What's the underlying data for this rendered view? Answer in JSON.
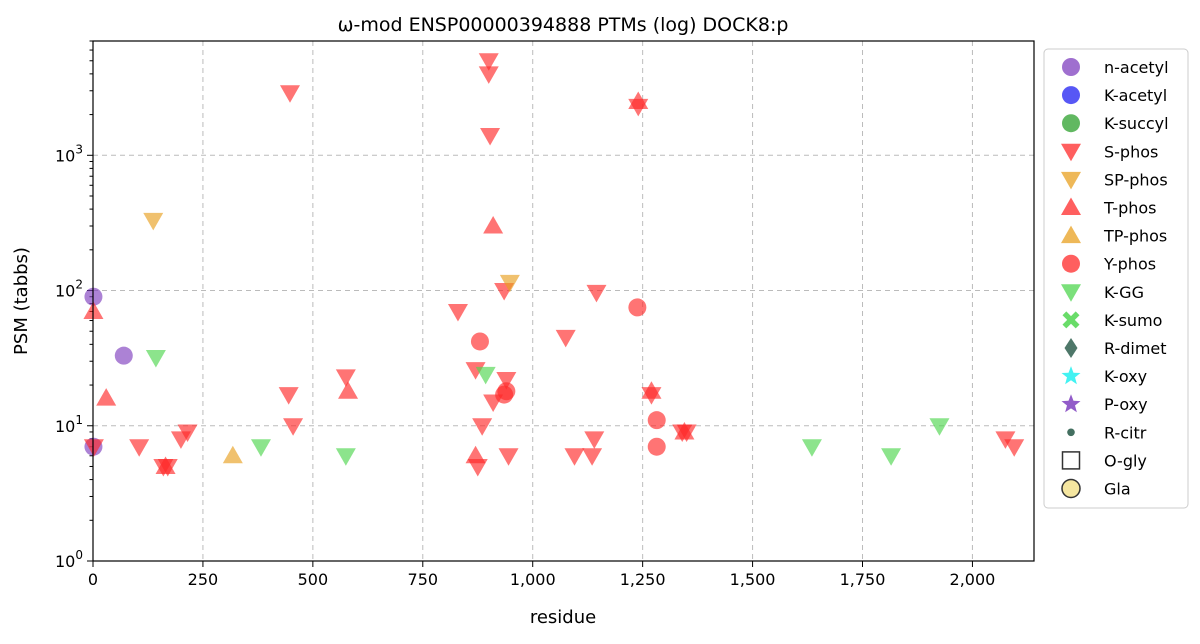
{
  "chart_data": {
    "type": "scatter",
    "title": "ω-mod ENSP00000394888 PTMs (log) DOCK8:p",
    "xlabel": "residue",
    "ylabel": "PSM (tabbs)",
    "xlim": [
      0,
      2140
    ],
    "ylim": [
      1,
      7000
    ],
    "yscale": "log",
    "grid": true,
    "legend_position": "right-outside",
    "x_ticks": [
      {
        "value": 0,
        "label": "0"
      },
      {
        "value": 250,
        "label": "250"
      },
      {
        "value": 500,
        "label": "500"
      },
      {
        "value": 750,
        "label": "750"
      },
      {
        "value": 1000,
        "label": "1,000"
      },
      {
        "value": 1250,
        "label": "1,250"
      },
      {
        "value": 1500,
        "label": "1,500"
      },
      {
        "value": 1750,
        "label": "1,750"
      },
      {
        "value": 2000,
        "label": "2,000"
      }
    ],
    "y_ticks": [
      {
        "value": 1,
        "base": "10",
        "exp": "0"
      },
      {
        "value": 10,
        "base": "10",
        "exp": "1"
      },
      {
        "value": 100,
        "base": "10",
        "exp": "2"
      },
      {
        "value": 1000,
        "base": "10",
        "exp": "3"
      }
    ],
    "series": [
      {
        "name": "n-acetyl",
        "marker": "circle",
        "color": "#7f3fbf",
        "points": [
          [
            1,
            90
          ],
          [
            1,
            7
          ],
          [
            70,
            33
          ]
        ]
      },
      {
        "name": "K-acetyl",
        "marker": "circle",
        "color": "#1f1ff2",
        "points": []
      },
      {
        "name": "K-succyl",
        "marker": "circle",
        "color": "#2ca02c",
        "points": []
      },
      {
        "name": "S-phos",
        "marker": "triangle-down",
        "color": "#ff2a2a",
        "points": [
          [
            2,
            7
          ],
          [
            105,
            7
          ],
          [
            160,
            5
          ],
          [
            170,
            5
          ],
          [
            200,
            8
          ],
          [
            215,
            9
          ],
          [
            448,
            2900
          ],
          [
            445,
            17
          ],
          [
            455,
            10
          ],
          [
            575,
            23
          ],
          [
            830,
            70
          ],
          [
            870,
            26
          ],
          [
            875,
            5
          ],
          [
            885,
            10
          ],
          [
            900,
            5000
          ],
          [
            900,
            4000
          ],
          [
            903,
            1400
          ],
          [
            910,
            15
          ],
          [
            935,
            100
          ],
          [
            940,
            22
          ],
          [
            945,
            6
          ],
          [
            1075,
            45
          ],
          [
            1095,
            6
          ],
          [
            1135,
            6
          ],
          [
            1140,
            8
          ],
          [
            1145,
            97
          ],
          [
            1240,
            2300
          ],
          [
            1270,
            17
          ],
          [
            1340,
            9
          ],
          [
            1350,
            9
          ],
          [
            2075,
            8
          ],
          [
            2095,
            7
          ]
        ]
      },
      {
        "name": "SP-phos",
        "marker": "triangle-down",
        "color": "#e8a020",
        "points": [
          [
            137,
            330
          ],
          [
            948,
            115
          ]
        ]
      },
      {
        "name": "T-phos",
        "marker": "triangle-up",
        "color": "#ff2a2a",
        "points": [
          [
            1,
            70
          ],
          [
            30,
            16
          ],
          [
            165,
            5
          ],
          [
            580,
            18
          ],
          [
            870,
            6
          ],
          [
            910,
            300
          ],
          [
            1240,
            2500
          ],
          [
            1270,
            18
          ],
          [
            1345,
            9
          ]
        ]
      },
      {
        "name": "TP-phos",
        "marker": "triangle-up",
        "color": "#e8a020",
        "points": [
          [
            318,
            6
          ]
        ]
      },
      {
        "name": "Y-phos",
        "marker": "circle",
        "color": "#ff2a2a",
        "points": [
          [
            880,
            42
          ],
          [
            935,
            17
          ],
          [
            940,
            18
          ],
          [
            1238,
            75
          ],
          [
            1282,
            11
          ],
          [
            1282,
            7
          ]
        ]
      },
      {
        "name": "K-GG",
        "marker": "triangle-down",
        "color": "#4fd64f",
        "points": [
          [
            143,
            32
          ],
          [
            382,
            7
          ],
          [
            575,
            6
          ],
          [
            893,
            24
          ],
          [
            1635,
            7
          ],
          [
            1815,
            6
          ],
          [
            1925,
            10
          ]
        ]
      },
      {
        "name": "K-sumo",
        "marker": "x",
        "color": "#4fd64f",
        "points": []
      },
      {
        "name": "R-dimet",
        "marker": "diamond",
        "color": "#2f5f4f",
        "points": []
      },
      {
        "name": "K-oxy",
        "marker": "star",
        "color": "#22f0f0",
        "points": []
      },
      {
        "name": "P-oxy",
        "marker": "star",
        "color": "#7f3fbf",
        "points": []
      },
      {
        "name": "R-citr",
        "marker": "small-circle",
        "color": "#2f5f4f",
        "points": []
      },
      {
        "name": "O-gly",
        "marker": "square",
        "color": "#ffffff",
        "points": []
      },
      {
        "name": "Gla",
        "marker": "circle",
        "color": "#f5e6a0",
        "points": []
      }
    ]
  }
}
